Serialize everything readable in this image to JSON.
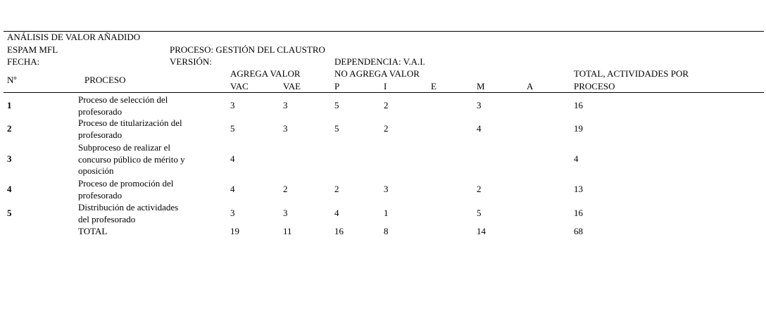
{
  "header": {
    "title": "ANÁLISIS DE VALOR AÑADIDO",
    "org": "ESPAM MFL",
    "process": "PROCESO: GESTIÓN DEL CLAUSTRO",
    "date": "FECHA:",
    "version": "VERSIÓN:",
    "dependency": "DEPENDENCIA: V.A.I."
  },
  "table": {
    "col_no": "Nº",
    "col_process": "PROCESO",
    "group_add": "AGREGA VALOR",
    "group_noadd": "NO AGREGA VALOR",
    "col_total": [
      "TOTAL, ACTIVIDADES POR",
      "PROCESO"
    ],
    "columns": [
      "VAC",
      "VAE",
      "P",
      "I",
      "E",
      "M",
      "A"
    ],
    "rows": [
      {
        "no": 1,
        "proceso": [
          "Proceso de selección del",
          "profesorado"
        ],
        "values": [
          3,
          3,
          5,
          2,
          null,
          3,
          null,
          16
        ]
      },
      {
        "no": 2,
        "proceso": [
          "Proceso de titularización del",
          "profesorado"
        ],
        "values": [
          5,
          3,
          5,
          2,
          null,
          4,
          null,
          19
        ]
      },
      {
        "no": 3,
        "proceso": [
          "Subproceso de realizar el",
          "concurso público de mérito y",
          "oposición"
        ],
        "values": [
          4,
          null,
          null,
          null,
          null,
          null,
          null,
          4
        ]
      },
      {
        "no": 4,
        "proceso": [
          "Proceso de promoción del",
          "profesorado"
        ],
        "values": [
          4,
          2,
          2,
          3,
          null,
          2,
          null,
          13
        ]
      },
      {
        "no": 5,
        "proceso": [
          "Distribución de actividades",
          "del profesorado"
        ],
        "values": [
          3,
          3,
          4,
          1,
          null,
          5,
          null,
          16
        ]
      }
    ],
    "total": {
      "label": "TOTAL",
      "values": [
        19,
        11,
        16,
        8,
        null,
        14,
        null,
        68
      ]
    }
  }
}
